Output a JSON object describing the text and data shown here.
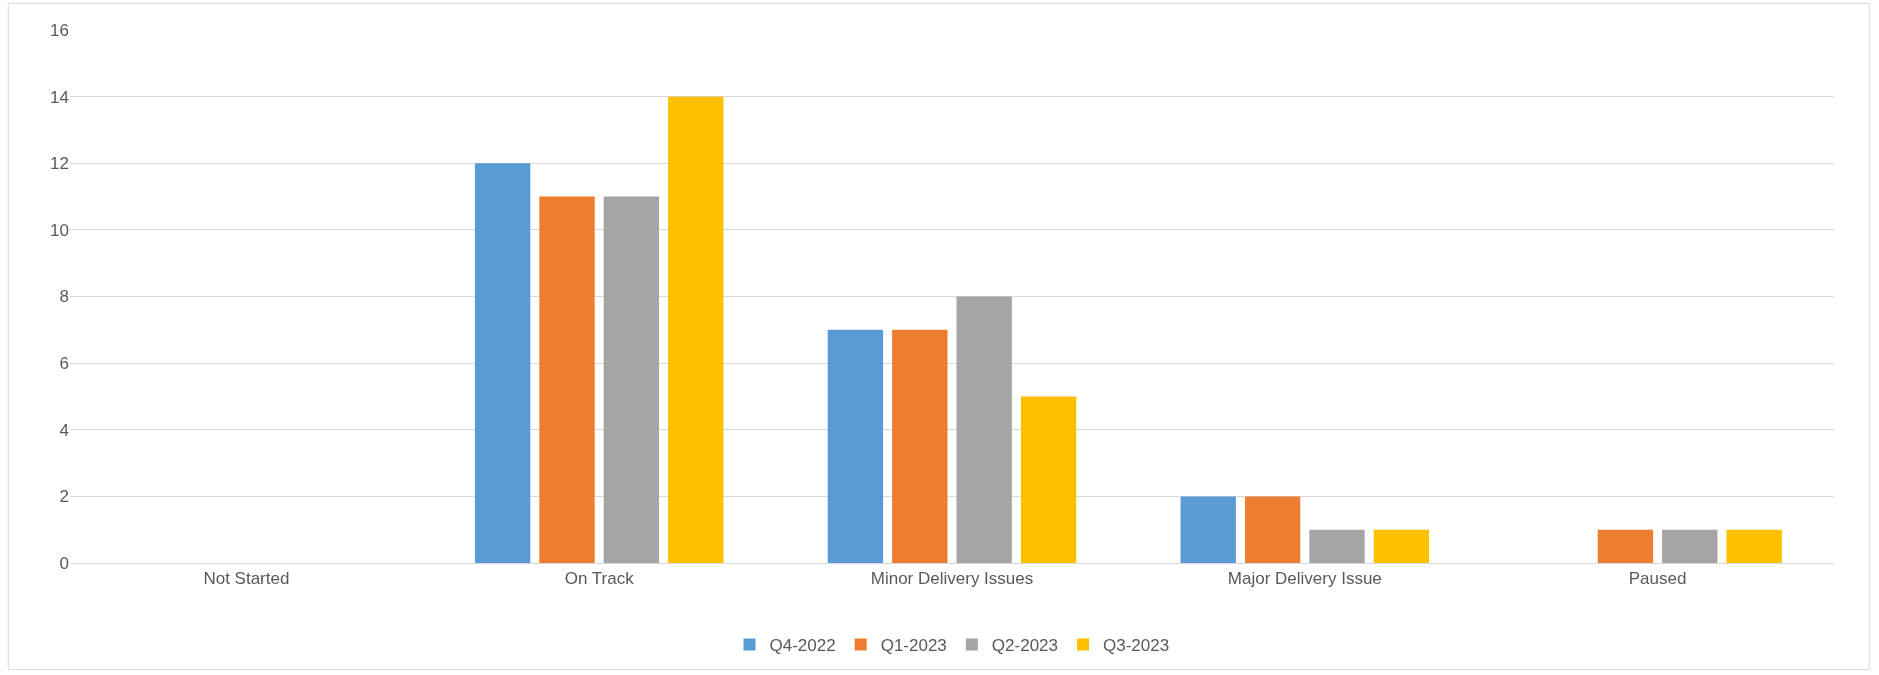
{
  "chart_data": {
    "type": "bar",
    "categories": [
      "Not Started",
      "On Track",
      "Minor Delivery Issues",
      "Major Delivery Issue",
      "Paused"
    ],
    "series": [
      {
        "name": "Q4-2022",
        "color": "#5b9bd5",
        "values": [
          0,
          12,
          7,
          2,
          0
        ]
      },
      {
        "name": "Q1-2023",
        "color": "#ed7d31",
        "values": [
          0,
          11,
          7,
          2,
          1
        ]
      },
      {
        "name": "Q2-2023",
        "color": "#a5a5a5",
        "values": [
          0,
          11,
          8,
          1,
          1
        ]
      },
      {
        "name": "Q3-2023",
        "color": "#ffc000",
        "values": [
          0,
          14,
          5,
          1,
          1
        ]
      }
    ],
    "ylim": [
      0,
      16
    ],
    "yticks": [
      0,
      2,
      4,
      6,
      8,
      10,
      12,
      14,
      16
    ],
    "grid": "y",
    "legend": "bottom"
  }
}
